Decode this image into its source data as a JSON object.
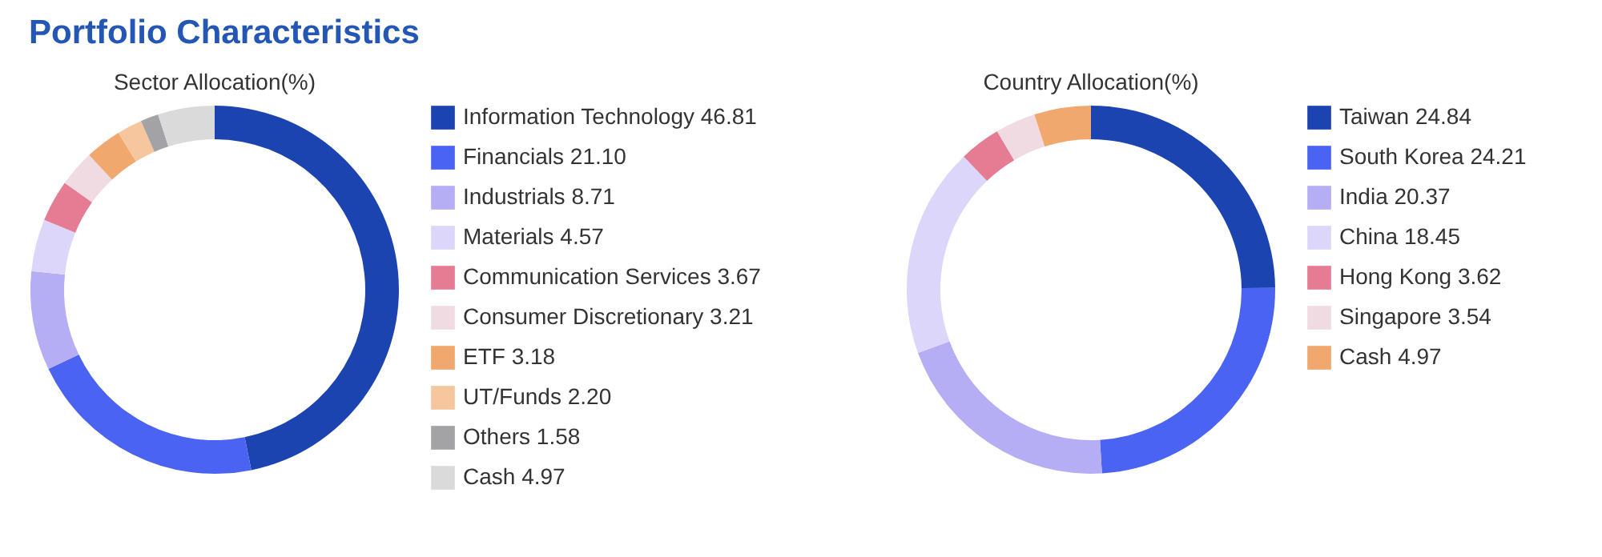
{
  "chart_data": [
    {
      "type": "donut",
      "title": "Sector Allocation(%)",
      "annotations": [
        "Portfolio Characteristics"
      ],
      "legend": "right",
      "categories": [
        "Information Technology",
        "Financials",
        "Industrials",
        "Materials",
        "Communication Services",
        "Consumer Discretionary",
        "ETF",
        "UT/Funds",
        "Others",
        "Cash"
      ],
      "values": [
        46.81,
        21.1,
        8.71,
        4.57,
        3.67,
        3.21,
        3.18,
        2.2,
        1.58,
        4.97
      ],
      "value_labels": [
        "46.81",
        "21.10",
        "8.71",
        "4.57",
        "3.67",
        "3.21",
        "3.18",
        "2.20",
        "1.58",
        "4.97"
      ],
      "colors": [
        "#1b44b0",
        "#4a63f2",
        "#b6aef5",
        "#dcd7fa",
        "#e57c94",
        "#f0dbe2",
        "#f0a86e",
        "#f6c79e",
        "#a3a3a6",
        "#dadada"
      ]
    },
    {
      "type": "donut",
      "title": "Country Allocation(%)",
      "legend": "right",
      "categories": [
        "Taiwan",
        "South Korea",
        "India",
        "China",
        "Hong Kong",
        "Singapore",
        "Cash"
      ],
      "values": [
        24.84,
        24.21,
        20.37,
        18.45,
        3.62,
        3.54,
        4.97
      ],
      "value_labels": [
        "24.84",
        "24.21",
        "20.37",
        "18.45",
        "3.62",
        "3.54",
        "4.97"
      ],
      "colors": [
        "#1b44b0",
        "#4a63f2",
        "#b6aef5",
        "#dcd7fa",
        "#e57c94",
        "#f0dbe2",
        "#f0a86e"
      ]
    }
  ]
}
